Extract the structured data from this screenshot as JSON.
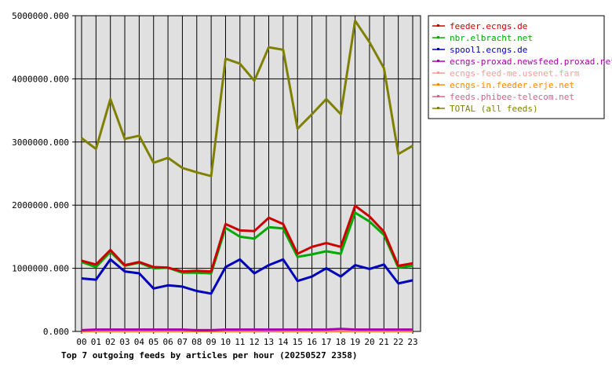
{
  "chart_data": {
    "type": "line",
    "title": "Top 7 outgoing feeds by articles per hour (20250527 2358)",
    "x": [
      "00",
      "01",
      "02",
      "03",
      "04",
      "05",
      "06",
      "07",
      "08",
      "09",
      "10",
      "11",
      "12",
      "13",
      "14",
      "15",
      "16",
      "17",
      "18",
      "19",
      "20",
      "21",
      "22",
      "23"
    ],
    "ylim": [
      0,
      5000000
    ],
    "yticks": [
      "0.000",
      "1000000.000",
      "2000000.000",
      "3000000.000",
      "4000000.000",
      "5000000.000"
    ],
    "grid": true,
    "legend_position": "top-right",
    "series": [
      {
        "name": "feeder.ecngs.de",
        "color": "#cc0000",
        "values": [
          1120000,
          1060000,
          1290000,
          1050000,
          1100000,
          1020000,
          1010000,
          950000,
          960000,
          950000,
          1700000,
          1600000,
          1590000,
          1800000,
          1700000,
          1230000,
          1340000,
          1400000,
          1340000,
          1990000,
          1820000,
          1580000,
          1040000,
          1080000
        ]
      },
      {
        "name": "nbr.elbracht.net",
        "color": "#00aa00",
        "values": [
          1100000,
          1020000,
          1260000,
          1040000,
          1090000,
          1000000,
          1010000,
          930000,
          930000,
          920000,
          1640000,
          1500000,
          1470000,
          1650000,
          1630000,
          1180000,
          1220000,
          1270000,
          1230000,
          1880000,
          1740000,
          1530000,
          1010000,
          1040000
        ]
      },
      {
        "name": "spool1.ecngs.de",
        "color": "#0000bb",
        "values": [
          840000,
          820000,
          1140000,
          950000,
          920000,
          680000,
          730000,
          710000,
          640000,
          600000,
          1020000,
          1140000,
          920000,
          1050000,
          1140000,
          800000,
          870000,
          1000000,
          870000,
          1050000,
          990000,
          1060000,
          760000,
          810000
        ]
      },
      {
        "name": "ecngs-proxad.newsfeed.proxad.net",
        "color": "#aa00aa",
        "values": [
          20000,
          30000,
          30000,
          30000,
          30000,
          30000,
          30000,
          30000,
          20000,
          20000,
          30000,
          30000,
          30000,
          30000,
          30000,
          30000,
          30000,
          30000,
          40000,
          30000,
          30000,
          30000,
          30000,
          30000
        ]
      },
      {
        "name": "ecngs-feed-me.usenet.farm",
        "color": "#ff9999",
        "values": [
          20000,
          20000,
          20000,
          20000,
          20000,
          20000,
          20000,
          20000,
          20000,
          20000,
          20000,
          20000,
          20000,
          20000,
          20000,
          20000,
          20000,
          20000,
          20000,
          20000,
          20000,
          20000,
          20000,
          20000
        ]
      },
      {
        "name": "ecngs-in.feeder.erje.net",
        "color": "#ff8800",
        "values": [
          10000,
          10000,
          10000,
          10000,
          10000,
          10000,
          10000,
          10000,
          10000,
          10000,
          10000,
          10000,
          10000,
          20000,
          10000,
          10000,
          10000,
          10000,
          10000,
          10000,
          10000,
          10000,
          10000,
          10000
        ]
      },
      {
        "name": "feeds.phibee-telecom.net",
        "color": "#cc6688",
        "values": [
          5000,
          5000,
          5000,
          5000,
          5000,
          5000,
          5000,
          5000,
          5000,
          5000,
          5000,
          5000,
          5000,
          5000,
          5000,
          5000,
          5000,
          5000,
          5000,
          5000,
          5000,
          5000,
          5000,
          5000
        ]
      },
      {
        "name": "TOTAL (all feeds)",
        "color": "#808000",
        "values": [
          3060000,
          2890000,
          3680000,
          3050000,
          3100000,
          2670000,
          2750000,
          2590000,
          2520000,
          2460000,
          4320000,
          4240000,
          3970000,
          4500000,
          4460000,
          3210000,
          3440000,
          3680000,
          3440000,
          4920000,
          4580000,
          4170000,
          2810000,
          2940000
        ]
      }
    ]
  }
}
